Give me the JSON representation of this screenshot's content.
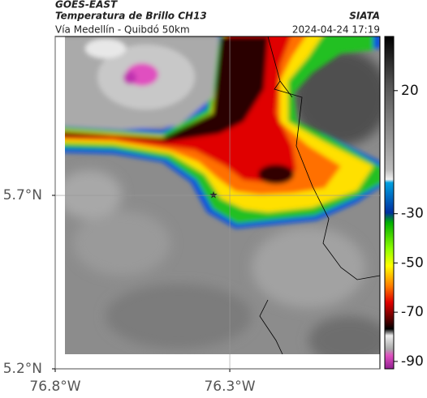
{
  "header": {
    "source": "GOES-EAST",
    "title": "Temperatura de Brillo CH13",
    "org": "SIATA",
    "subtitle": "Vía Medellín - Quibdó 50km",
    "datetime": "2024-04-24 17:19"
  },
  "map": {
    "xlim": [
      -76.8,
      -75.87
    ],
    "ylim": [
      5.2,
      6.158
    ],
    "xticks": [
      {
        "value": -76.8,
        "label": "76.8°W"
      },
      {
        "value": -76.3,
        "label": "76.3°W"
      }
    ],
    "yticks": [
      {
        "value": 5.7,
        "label": "5.7°N"
      },
      {
        "value": 5.2,
        "label": "5.2°N"
      }
    ],
    "grid": true
  },
  "colorbar": {
    "lim": [
      -93,
      42
    ],
    "ticks": [
      20,
      -30,
      -50,
      -70,
      -90
    ]
  }
}
